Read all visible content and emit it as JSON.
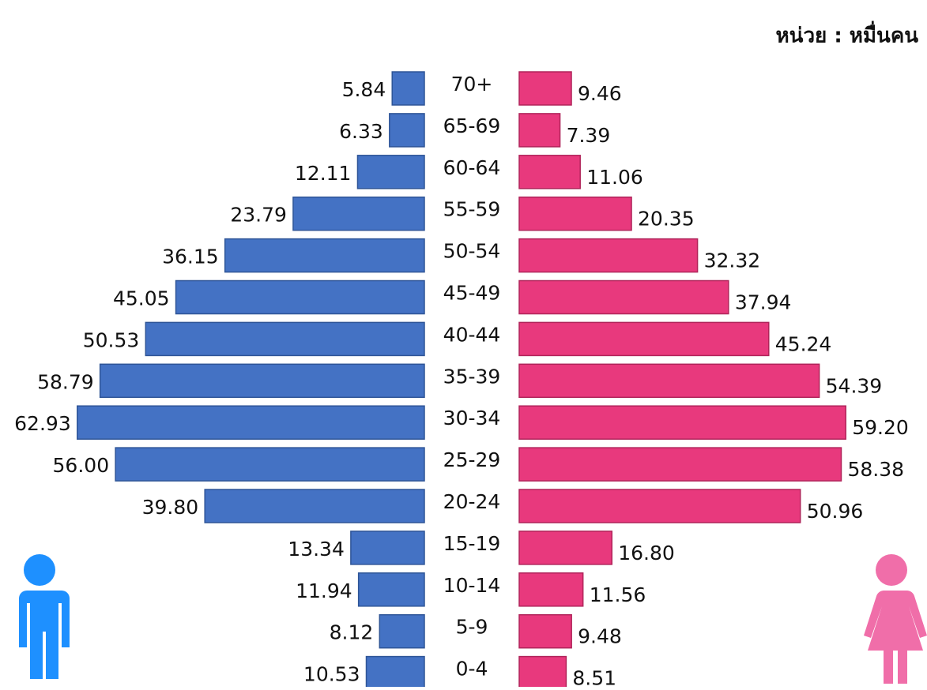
{
  "chart_data": {
    "type": "pyramid",
    "unit_label": "หน่วย : หมื่นคน",
    "categories": [
      "70+",
      "65-69",
      "60-64",
      "55-59",
      "50-54",
      "45-49",
      "40-44",
      "35-39",
      "30-34",
      "25-29",
      "20-24",
      "15-19",
      "10-14",
      "5-9",
      "0-4"
    ],
    "series": [
      {
        "color": "#4472c4",
        "side": "left",
        "values": [
          5.84,
          6.33,
          12.11,
          23.79,
          36.15,
          45.05,
          50.53,
          58.79,
          62.93,
          56,
          39.8,
          13.34,
          11.94,
          8.12,
          10.53
        ],
        "value_labels": [
          "5.84",
          "6.33",
          "12.11",
          "23.79",
          "36.15",
          "45.05",
          "50.53",
          "58.79",
          "62.93",
          "56.00",
          "39.80",
          "13.34",
          "11.94",
          "8.12",
          "10.53"
        ]
      },
      {
        "color": "#e8397d",
        "side": "right",
        "values": [
          9.46,
          7.39,
          11.06,
          20.35,
          32.32,
          37.94,
          45.24,
          54.39,
          59.2,
          58.38,
          50.96,
          16.8,
          11.56,
          9.48,
          8.51
        ],
        "value_labels": [
          "9.46",
          "7.39",
          "11.06",
          "20.35",
          "32.32",
          "37.94",
          "45.24",
          "54.39",
          "59.20",
          "58.38",
          "50.96",
          "16.80",
          "11.56",
          "9.48",
          "8.51"
        ]
      }
    ]
  }
}
